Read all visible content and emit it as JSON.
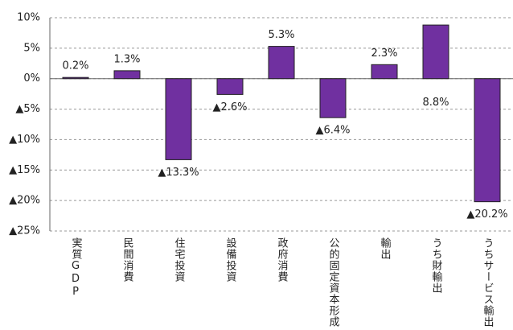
{
  "chart_data": {
    "type": "bar",
    "categories": [
      "実質GDP",
      "民間消費",
      "住宅投資",
      "設備投資",
      "政府消費",
      "公的固定資本形成",
      "輸出",
      "うち財輸出",
      "うちサービス輸出"
    ],
    "values": [
      0.2,
      1.3,
      -13.3,
      -2.6,
      5.3,
      -6.4,
      2.3,
      8.8,
      -20.2
    ],
    "value_labels": [
      "0.2%",
      "1.3%",
      "▲13.3%",
      "▲2.6%",
      "5.3%",
      "▲6.4%",
      "2.3%",
      "8.8%",
      "▲20.2%"
    ],
    "color": "#7030a0",
    "ylim": [
      -25,
      10
    ],
    "yticks": [
      {
        "value": 10,
        "label": "10%"
      },
      {
        "value": 5,
        "label": "5%"
      },
      {
        "value": 0,
        "label": "0%"
      },
      {
        "value": -5,
        "label": "▲5%"
      },
      {
        "value": -10,
        "label": "▲10%"
      },
      {
        "value": -15,
        "label": "▲15%"
      },
      {
        "value": -20,
        "label": "▲20%"
      },
      {
        "value": -25,
        "label": "▲25%"
      }
    ],
    "grid": true
  }
}
